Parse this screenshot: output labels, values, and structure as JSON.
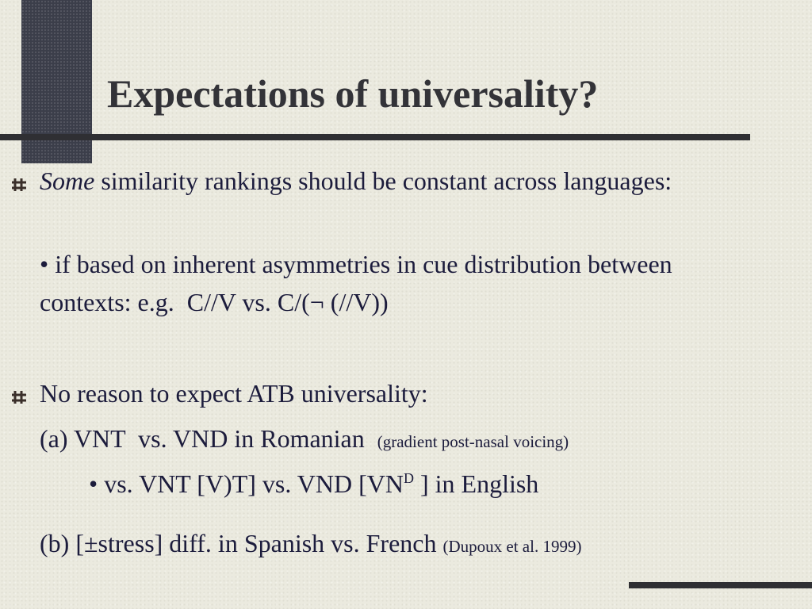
{
  "slide": {
    "title": "Expectations of universality?",
    "paragraphs": [
      {
        "segments": [
          "Some",
          "similarity rankings should be constant across languages:"
        ]
      },
      {
        "segments": [
          "• if based on inherent asymmetries in cue distribution between contexts: e.g.  C//V vs. C/(¬ (//V))"
        ]
      },
      {
        "segments": [
          "No reason to expect ATB universality:"
        ]
      },
      {
        "segments": [
          "(a) VNT  vs. VND in Romanian",
          "(gradient post-nasal voicing)"
        ]
      },
      {
        "segments": [
          "• vs. VNT [V)T] vs. VND [VN",
          "D",
          "] in English"
        ]
      },
      {
        "segments": [
          "(b) [±stress] diff. in Spanish vs. French",
          "(Dupoux et al. 1999)"
        ]
      }
    ]
  }
}
